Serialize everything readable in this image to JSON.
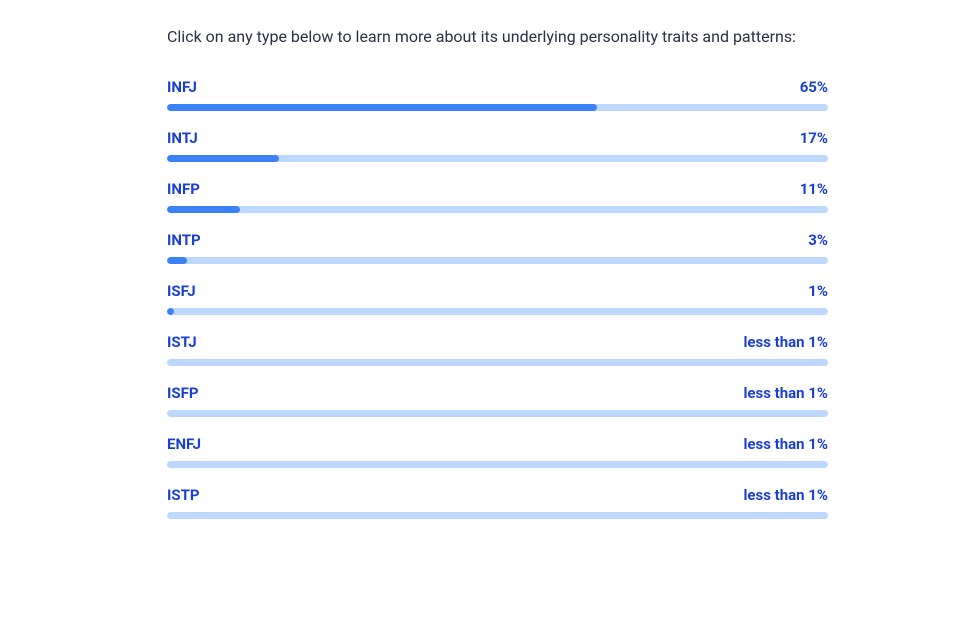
{
  "intro_text": "Click on any type below to learn more about its underlying personality traits and patterns:",
  "text_color": "#2a3144",
  "accent_color": "#1a3fd1",
  "bar_track_color": "#bdd8ff",
  "bar_fill_color": "#3b82f6",
  "types": [
    {
      "label": "INFJ",
      "value_text": "65%",
      "fill_pct": 65
    },
    {
      "label": "INTJ",
      "value_text": "17%",
      "fill_pct": 17
    },
    {
      "label": "INFP",
      "value_text": "11%",
      "fill_pct": 11
    },
    {
      "label": "INTP",
      "value_text": "3%",
      "fill_pct": 3
    },
    {
      "label": "ISFJ",
      "value_text": "1%",
      "fill_pct": 1
    },
    {
      "label": "ISTJ",
      "value_text": "less than 1%",
      "fill_pct": 0
    },
    {
      "label": "ISFP",
      "value_text": "less than 1%",
      "fill_pct": 0
    },
    {
      "label": "ENFJ",
      "value_text": "less than 1%",
      "fill_pct": 0
    },
    {
      "label": "ISTP",
      "value_text": "less than 1%",
      "fill_pct": 0
    }
  ]
}
